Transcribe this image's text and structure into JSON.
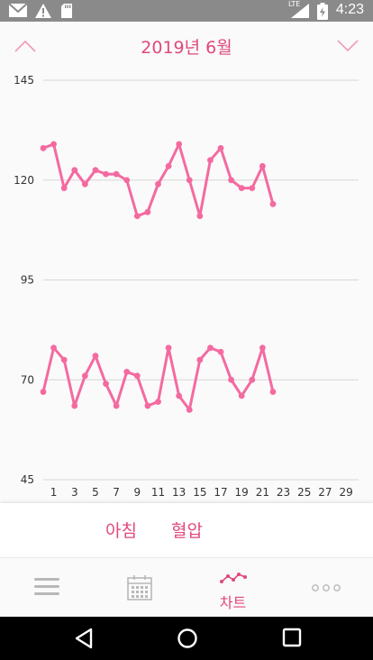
{
  "status_bar": {
    "time": "4:23",
    "network": "LTE",
    "icons": [
      "gmail-icon",
      "warning-icon",
      "sd-card-icon",
      "signal-icon",
      "battery-icon"
    ]
  },
  "header": {
    "title": "2019년 6월",
    "prev_icon": "chevron-up-icon",
    "next_icon": "chevron-down-icon"
  },
  "chart_data": {
    "type": "line",
    "title": "",
    "xlabel": "",
    "ylabel": "",
    "x_ticks": [
      1,
      3,
      5,
      7,
      9,
      11,
      13,
      15,
      17,
      19,
      21,
      23,
      25,
      27,
      29
    ],
    "y_ticks": [
      45,
      70,
      95,
      120,
      145
    ],
    "xlim": [
      0,
      30.2
    ],
    "ylim": [
      45,
      145
    ],
    "grid": true,
    "color": "#f46aa0",
    "x": [
      0,
      1,
      2,
      3,
      4,
      5,
      6,
      7,
      8,
      9,
      10,
      11,
      12,
      13,
      14,
      15,
      16,
      17,
      18,
      19,
      20,
      21,
      22
    ],
    "series": [
      {
        "values": [
          128,
          129,
          118,
          122.5,
          119,
          122.5,
          121.5,
          121.5,
          120,
          111,
          112,
          119,
          123.5,
          129,
          120,
          111,
          125,
          128,
          120,
          118,
          118,
          123.5,
          114
        ]
      },
      {
        "values": [
          67,
          78,
          75,
          63.5,
          71,
          76,
          69,
          63.5,
          72,
          71,
          63.5,
          64.5,
          78,
          66,
          62.5,
          75,
          78,
          77,
          70,
          66,
          70,
          78,
          67
        ]
      }
    ]
  },
  "filters": [
    {
      "label": "아침"
    },
    {
      "label": "혈압"
    }
  ],
  "tabs": [
    {
      "icon": "list-icon",
      "label": ""
    },
    {
      "icon": "calendar-icon",
      "label": ""
    },
    {
      "icon": "chart-icon",
      "label": "차트",
      "active": true
    },
    {
      "icon": "more-icon",
      "label": ""
    }
  ],
  "colors": {
    "accent": "#e0497b",
    "line": "#f46aa0",
    "status_bar": "#8a8a8a"
  }
}
